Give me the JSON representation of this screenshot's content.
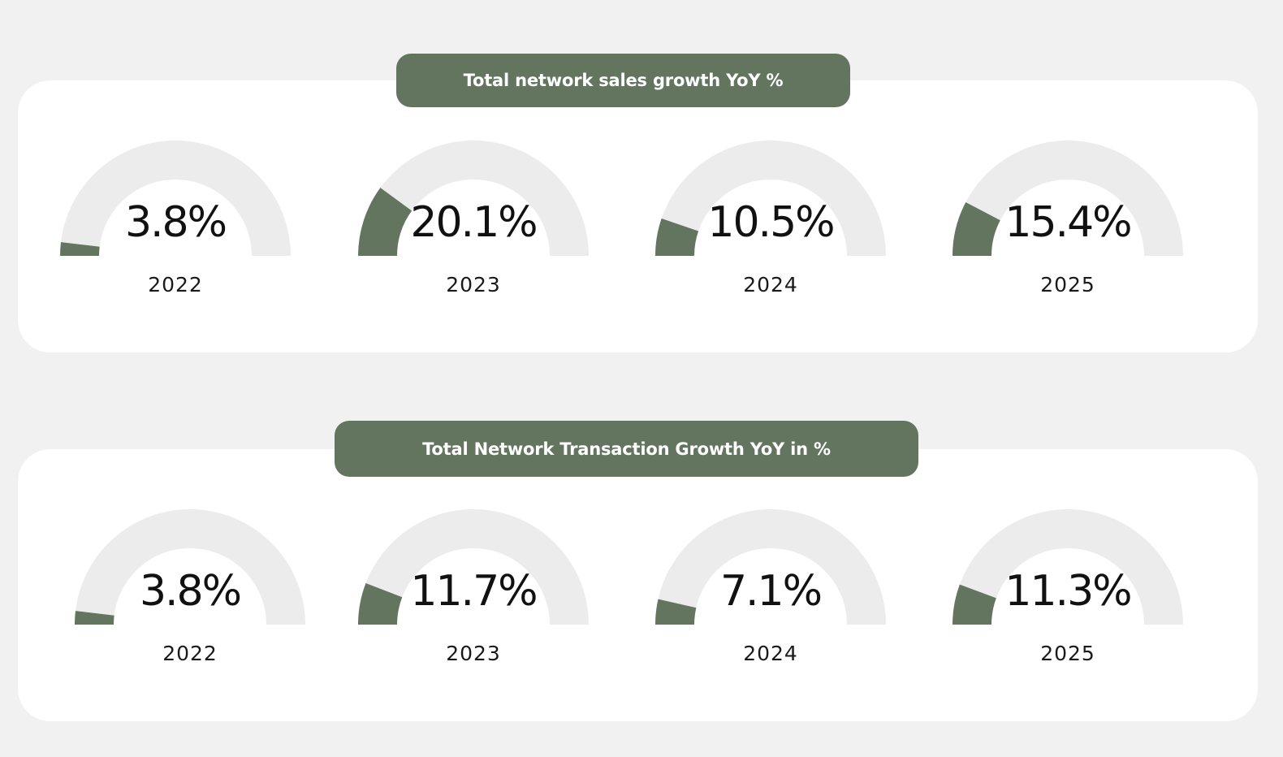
{
  "colors": {
    "background": "#f1f1f1",
    "panel": "#ffffff",
    "accent": "#63755f",
    "track": "#ececec",
    "text": "#111111"
  },
  "chart_data": [
    {
      "type": "gauge",
      "title": "Total network sales growth YoY %",
      "scale_max_percent": 100,
      "categories": [
        "2022",
        "2023",
        "2024",
        "2025"
      ],
      "values": [
        3.8,
        20.1,
        10.5,
        15.4
      ],
      "labels": [
        "3.8%",
        "20.1%",
        "10.5%",
        "15.4%"
      ]
    },
    {
      "type": "gauge",
      "title": "Total Network Transaction Growth YoY in %",
      "scale_max_percent": 100,
      "categories": [
        "2022",
        "2023",
        "2024",
        "2025"
      ],
      "values": [
        3.8,
        11.7,
        7.1,
        11.3
      ],
      "labels": [
        "3.8%",
        "11.7%",
        "7.1%",
        "11.3%"
      ]
    }
  ]
}
